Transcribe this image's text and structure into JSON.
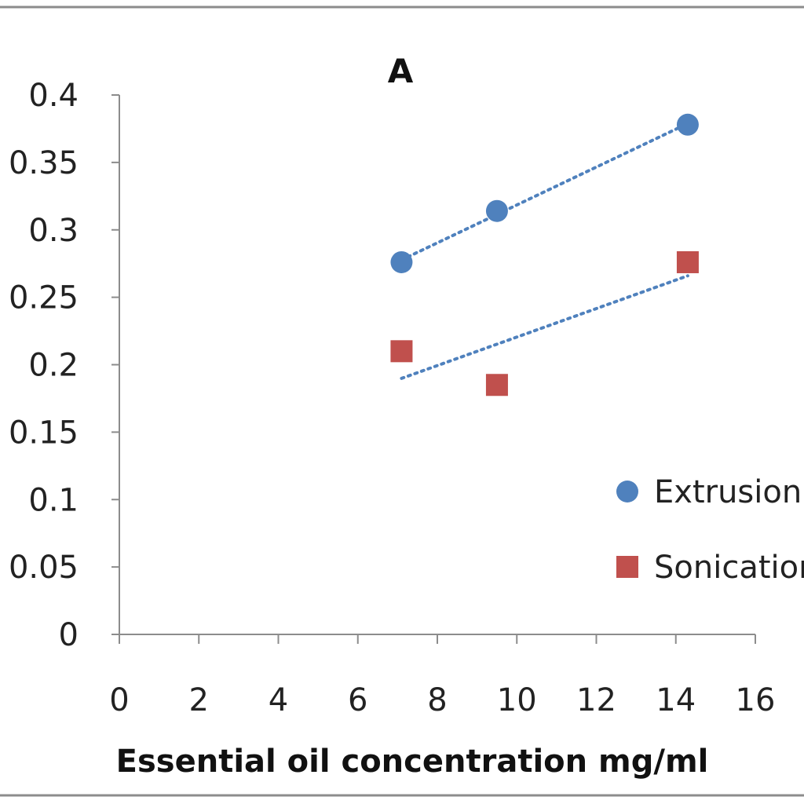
{
  "chart_data": {
    "type": "scatter",
    "title": "A",
    "xlabel": "Essential oil concentration mg/ml",
    "ylabel": "",
    "xlim": [
      0,
      16
    ],
    "ylim": [
      0,
      0.4
    ],
    "x_ticks": [
      "0",
      "2",
      "4",
      "6",
      "8",
      "10",
      "12",
      "14",
      "16"
    ],
    "y_ticks": [
      "0",
      "0.05",
      "0.1",
      "0.15",
      "0.2",
      "0.25",
      "0.3",
      "0.35",
      "0.4"
    ],
    "grid": false,
    "legend_position": "right",
    "series": [
      {
        "name": "Extrusion",
        "marker": "circle",
        "color": "#4F81BD",
        "x": [
          7.1,
          9.5,
          14.3
        ],
        "y": [
          0.276,
          0.314,
          0.378
        ],
        "trendline": "linear",
        "trendline_style": "dotted"
      },
      {
        "name": "Sonication",
        "marker": "square",
        "color": "#C0504D",
        "x": [
          7.1,
          9.5,
          14.3
        ],
        "y": [
          0.21,
          0.185,
          0.276
        ],
        "trendline": "linear",
        "trendline_style": "dotted",
        "trendline_color": "#4F81BD"
      }
    ]
  }
}
